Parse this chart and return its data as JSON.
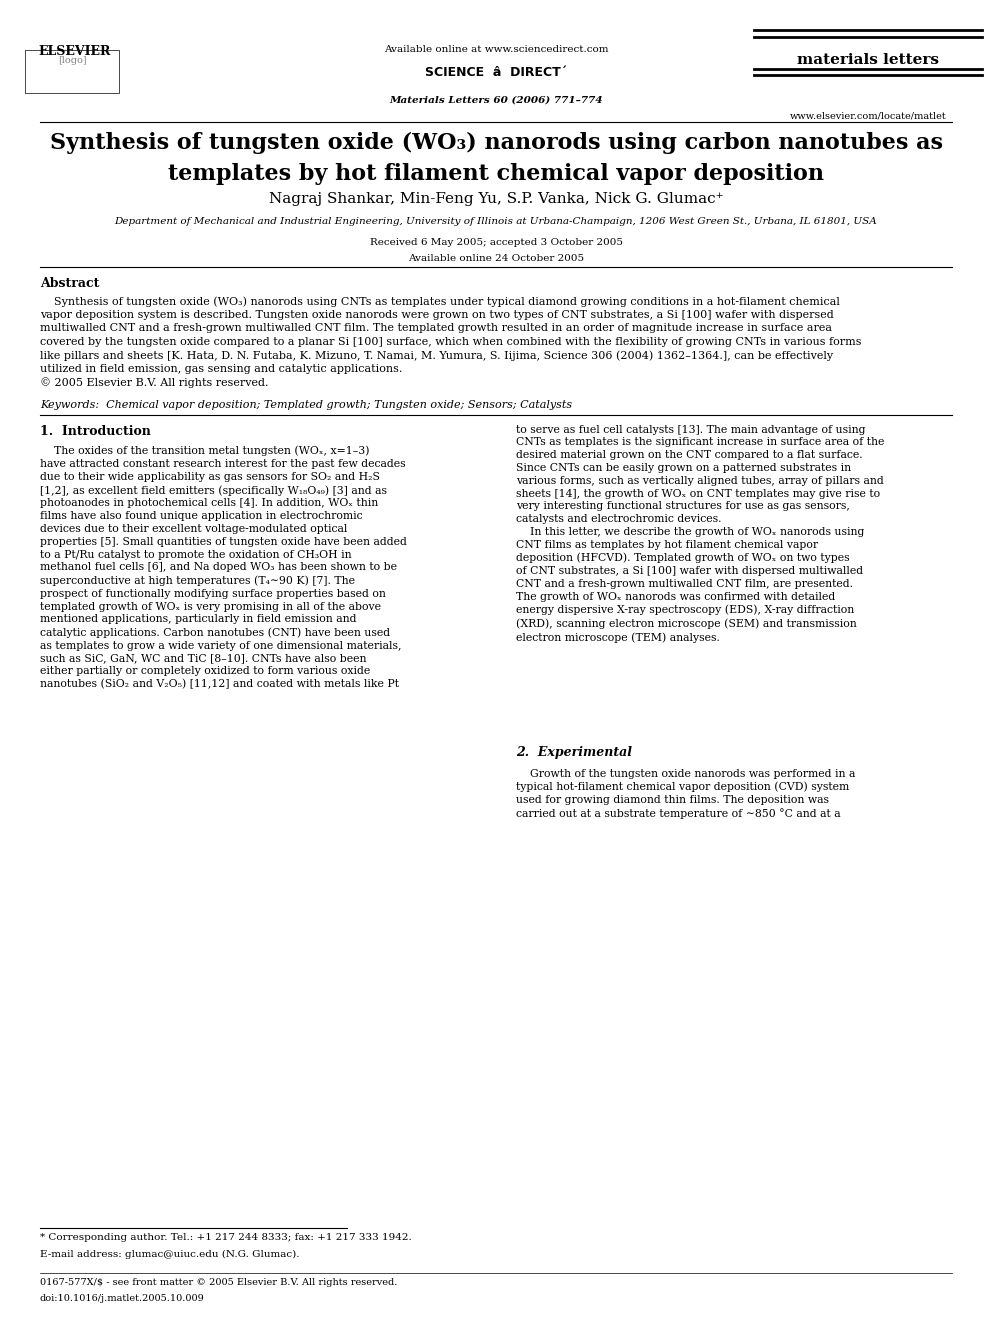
{
  "bg_color": "#ffffff",
  "fig_width": 9.92,
  "fig_height": 13.23,
  "header": {
    "available_online": "Available online at www.sciencedirect.com",
    "journal_name": "materials letters",
    "journal_info": "Materials Letters 60 (2006) 771–774",
    "website": "www.elsevier.com/locate/matlet"
  },
  "authors": "Nagraj Shankar, Min-Feng Yu, S.P. Vanka, Nick G. Glumac",
  "affiliation": "Department of Mechanical and Industrial Engineering, University of Illinois at Urbana-Champaign, 1206 West Green St., Urbana, IL 61801, USA",
  "received": "Received 6 May 2005; accepted 3 October 2005",
  "available_online_date": "Available online 24 October 2005",
  "abstract_title": "Abstract",
  "keywords": "Keywords:  Chemical vapor deposition; Templated growth; Tungsten oxide; Sensors; Catalysts",
  "section1_title": "1.  Introduction",
  "section2_title": "2.  Experimental",
  "footnote_star": "* Corresponding author. Tel.: +1 217 244 8333; fax: +1 217 333 1942.",
  "footnote_email": "E-mail address: glumac@uiuc.edu (N.G. Glumac).",
  "footer_left": "0167-577X/$ - see front matter © 2005 Elsevier B.V. All rights reserved.",
  "footer_doi": "doi:10.1016/j.matlet.2005.10.009"
}
